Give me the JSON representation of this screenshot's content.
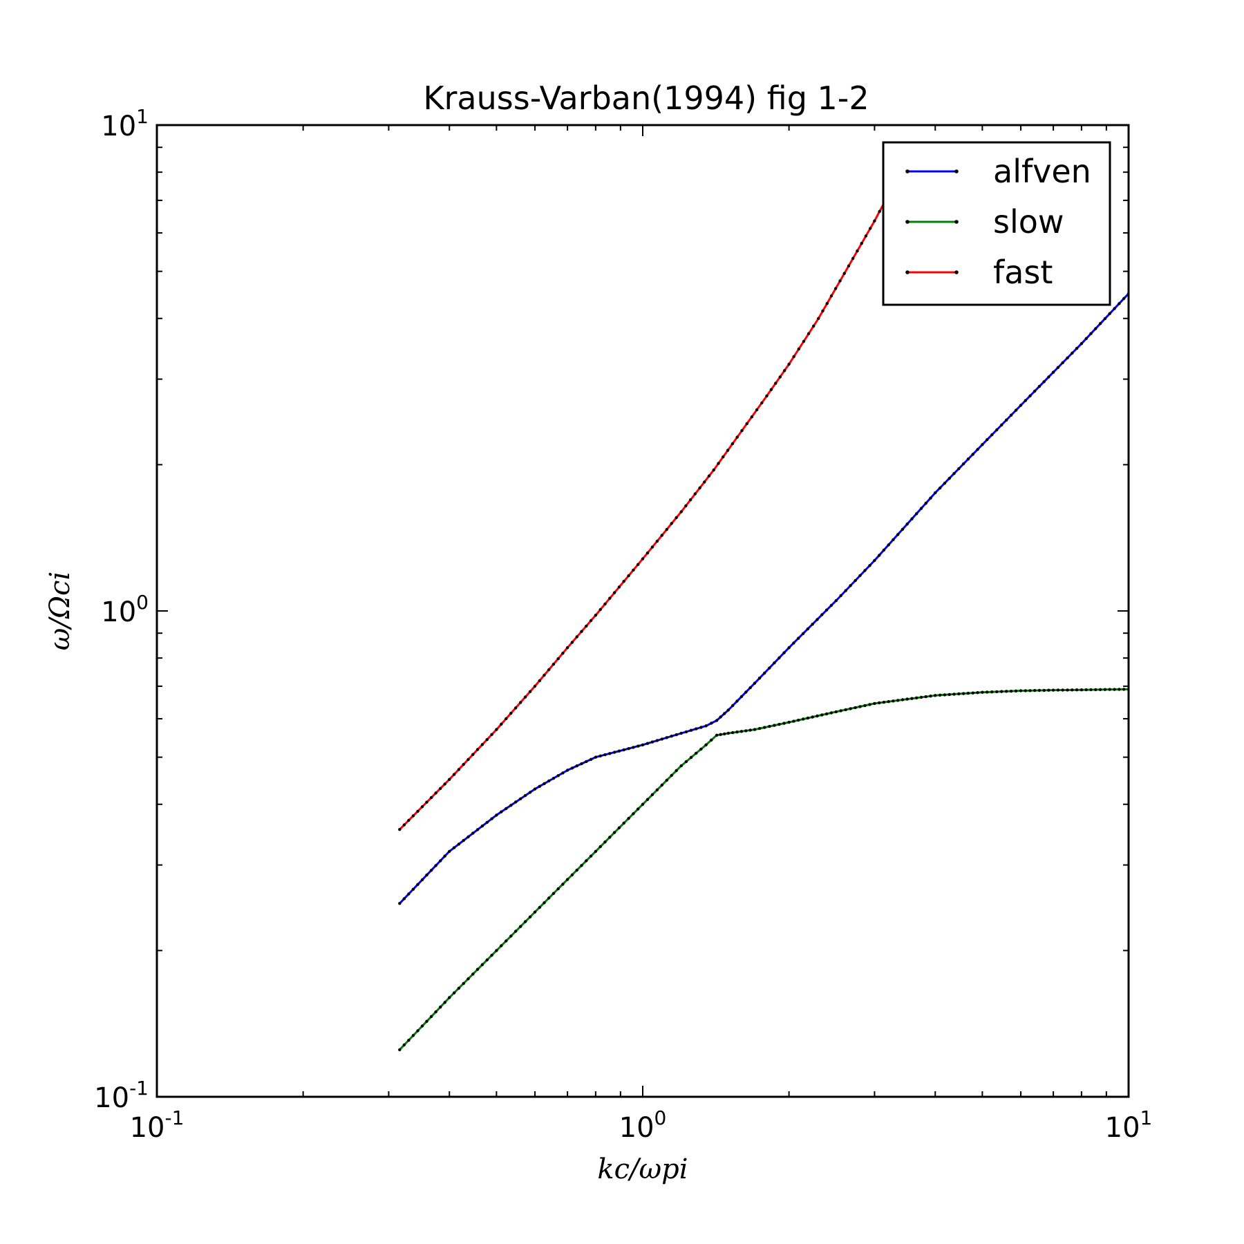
{
  "chart_data": {
    "type": "line",
    "title": "Krauss-Varban(1994) fig 1-2",
    "xlabel": "kc/ωpi",
    "ylabel": "ω/Ωci",
    "xscale": "log",
    "yscale": "log",
    "xlim": [
      0.1,
      10
    ],
    "ylim": [
      0.1,
      10
    ],
    "grid": false,
    "legend_position": "top-right",
    "x_ticks": [
      {
        "value": 0.1,
        "base": "10",
        "exp": "-1"
      },
      {
        "value": 1,
        "base": "10",
        "exp": "0"
      },
      {
        "value": 10,
        "base": "10",
        "exp": "1"
      }
    ],
    "y_ticks": [
      {
        "value": 0.1,
        "base": "10",
        "exp": "-1"
      },
      {
        "value": 1,
        "base": "10",
        "exp": "0"
      },
      {
        "value": 10,
        "base": "10",
        "exp": "1"
      }
    ],
    "series": [
      {
        "name": "alfven",
        "color": "#0000ff",
        "x": [
          0.316,
          0.4,
          0.5,
          0.6,
          0.7,
          0.8,
          1.0,
          1.2,
          1.35,
          1.42,
          1.5,
          1.7,
          2.0,
          2.5,
          3.0,
          4.0,
          5.0,
          6.0,
          7.0,
          8.0,
          10.0
        ],
        "y": [
          0.25,
          0.32,
          0.38,
          0.43,
          0.47,
          0.5,
          0.53,
          0.56,
          0.58,
          0.595,
          0.625,
          0.71,
          0.84,
          1.05,
          1.27,
          1.75,
          2.2,
          2.65,
          3.1,
          3.55,
          4.5
        ]
      },
      {
        "name": "slow",
        "color": "#008000",
        "x": [
          0.316,
          0.4,
          0.5,
          0.6,
          0.7,
          0.8,
          1.0,
          1.2,
          1.35,
          1.42,
          1.5,
          1.7,
          2.0,
          2.5,
          3.0,
          4.0,
          5.0,
          6.0,
          7.0,
          8.0,
          10.0
        ],
        "y": [
          0.125,
          0.16,
          0.2,
          0.24,
          0.28,
          0.32,
          0.4,
          0.48,
          0.53,
          0.555,
          0.56,
          0.57,
          0.59,
          0.62,
          0.645,
          0.67,
          0.68,
          0.685,
          0.687,
          0.688,
          0.69
        ]
      },
      {
        "name": "fast",
        "color": "#ff0000",
        "x": [
          0.316,
          0.4,
          0.5,
          0.6,
          0.7,
          0.8,
          1.0,
          1.2,
          1.4,
          1.6,
          1.8,
          2.0,
          2.3,
          2.6,
          3.0,
          3.3
        ],
        "y": [
          0.355,
          0.45,
          0.57,
          0.7,
          0.84,
          0.98,
          1.28,
          1.6,
          1.95,
          2.35,
          2.77,
          3.22,
          4.0,
          4.95,
          6.35,
          7.6
        ]
      }
    ]
  }
}
